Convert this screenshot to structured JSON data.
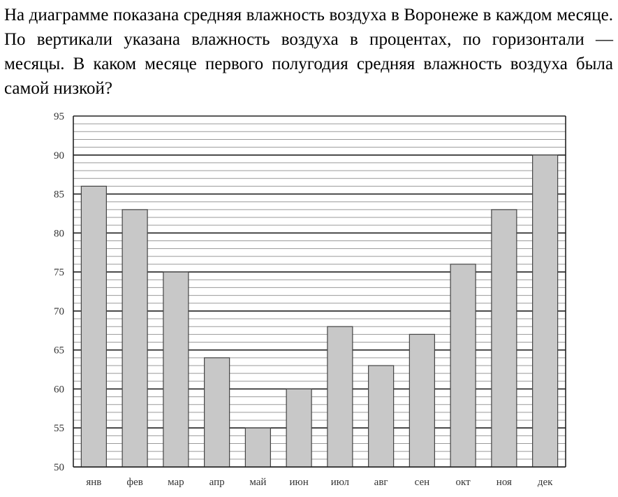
{
  "question": "На диаграмме показана средняя влажность воздуха в Воронеже в каждом месяце. По вертикали указана влажность воздуха в процентах, по горизонтали — месяцы. В каком месяце первого полугодия средняя влажность воздуха была самой низкой?",
  "chart_data": {
    "type": "bar",
    "categories": [
      "янв",
      "фев",
      "мар",
      "апр",
      "май",
      "июн",
      "июл",
      "авг",
      "сен",
      "окт",
      "ноя",
      "дек"
    ],
    "values": [
      86,
      83,
      75,
      64,
      55,
      60,
      68,
      63,
      67,
      76,
      83,
      90
    ],
    "ylim": [
      50,
      95
    ],
    "yticks": [
      50,
      55,
      60,
      65,
      70,
      75,
      80,
      85,
      90,
      95
    ],
    "minor_step": 1,
    "grid": true,
    "bar_color": "#c8c8c8",
    "bar_stroke": "#444444"
  }
}
